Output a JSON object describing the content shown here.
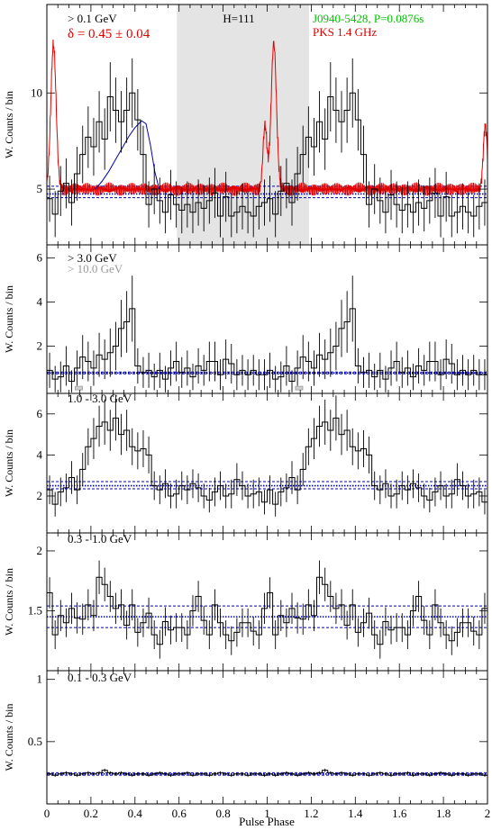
{
  "figure": {
    "x_axis_label": "Pulse Phase",
    "x_tick_labels": [
      "0",
      "0.2",
      "0.4",
      "0.6",
      "0.8",
      "1",
      "1.2",
      "1.4",
      "1.6",
      "1.8",
      "2"
    ],
    "colors": {
      "histogram": "#000000",
      "radio": "#e00000",
      "model": "#0000b0",
      "background": "#0000b0",
      "shade": "#e4e4e4",
      "pulsar_label": "#00c000",
      "radio_label": "#e00000",
      "faint_label": "#9a9a9a"
    }
  },
  "chart_data": [
    {
      "type": "line",
      "panel": "a",
      "ylabel": "W. Counts / bin",
      "energy_label": "> 0.1 GeV",
      "delta_label": "δ = 0.45 ± 0.04",
      "h_label": "H=111",
      "pulsar_label": "J0940-5428, P=0.0876s",
      "radio_label": "PKS 1.4 GHz",
      "xlim": [
        0,
        2
      ],
      "ylim": [
        2.1,
        14.6
      ],
      "yticks": [
        5,
        10
      ],
      "ytick_labels": [
        "5",
        "10"
      ],
      "grid": false,
      "shaded_region": [
        0.59,
        1.19
      ],
      "background_level": [
        4.75,
        5.15,
        4.55
      ],
      "histogram": [
        4.5,
        3.7,
        4.9,
        5.3,
        4.3,
        5.8,
        6.8,
        7.7,
        7.2,
        8.5,
        7.6,
        9.8,
        9.1,
        8.5,
        9.1,
        10.0,
        8.6,
        6.8,
        4.2,
        5.0,
        4.4,
        3.8,
        4.7,
        4.2,
        3.9,
        4.2,
        3.8,
        4.3,
        4.0,
        4.4,
        4.8,
        3.6,
        4.6,
        3.6,
        3.8,
        4.1,
        3.8,
        3.6,
        4.1,
        4.3,
        4.5,
        3.7,
        4.9,
        5.3,
        4.3,
        5.8,
        6.8,
        7.7,
        7.2,
        8.5,
        7.6,
        9.8,
        9.1,
        8.5,
        9.1,
        10.0,
        8.6,
        6.8,
        4.2,
        5.0,
        4.4,
        3.8,
        4.7,
        4.2,
        3.9,
        4.2,
        3.8,
        4.3,
        4.0,
        4.4,
        4.8,
        3.6,
        4.6,
        3.6,
        3.8,
        4.1,
        3.8,
        3.6,
        4.1,
        4.3
      ],
      "errors": [
        1.2,
        1.2,
        1.3,
        1.3,
        1.2,
        1.4,
        1.5,
        1.6,
        1.5,
        1.6,
        1.6,
        1.8,
        1.7,
        1.6,
        1.7,
        1.8,
        1.6,
        1.5,
        1.2,
        1.3,
        1.2,
        1.1,
        1.3,
        1.2,
        1.2,
        1.2,
        1.1,
        1.2,
        1.2,
        1.2,
        1.3,
        1.1,
        1.3,
        1.1,
        1.1,
        1.2,
        1.1,
        1.1,
        1.2,
        1.2,
        1.2,
        1.2,
        1.3,
        1.3,
        1.2,
        1.4,
        1.5,
        1.6,
        1.5,
        1.6,
        1.6,
        1.8,
        1.7,
        1.6,
        1.7,
        1.8,
        1.6,
        1.5,
        1.2,
        1.3,
        1.2,
        1.1,
        1.3,
        1.2,
        1.2,
        1.2,
        1.1,
        1.2,
        1.2,
        1.2,
        1.3,
        1.1,
        1.3,
        1.1,
        1.1,
        1.2,
        1.1,
        1.1,
        1.2,
        1.2
      ],
      "model_curve": {
        "x": [
          0.22,
          0.25,
          0.28,
          0.31,
          0.34,
          0.37,
          0.4,
          0.43,
          0.45,
          0.47,
          0.49,
          0.51
        ],
        "y": [
          5.0,
          5.4,
          5.9,
          6.5,
          7.1,
          7.7,
          8.2,
          8.55,
          8.4,
          7.3,
          5.9,
          5.0
        ]
      },
      "radio_profile": {
        "baseline": 5.0,
        "peaks": [
          {
            "phase": 0.03,
            "height": 12.5,
            "width": 0.012
          },
          {
            "phase": 0.99,
            "height": 8.3,
            "width": 0.009
          },
          {
            "phase": 1.03,
            "height": 12.6,
            "width": 0.012
          },
          {
            "phase": 1.99,
            "height": 8.3,
            "width": 0.009
          }
        ]
      }
    },
    {
      "type": "line",
      "panel": "b",
      "ylabel": "W. Counts / bin",
      "energy_label": "> 3.0 GeV",
      "energy_label_2": "> 10.0 GeV",
      "xlim": [
        0,
        2
      ],
      "ylim": [
        -0.15,
        6.6
      ],
      "yticks": [
        2,
        4,
        6
      ],
      "ytick_labels": [
        "2",
        "4",
        "6"
      ],
      "grid": false,
      "background_level": [
        0.78,
        0.82,
        0.74
      ],
      "histogram": [
        0.9,
        0.5,
        0.6,
        1.1,
        0.4,
        1.0,
        1.5,
        1.3,
        1.0,
        1.6,
        1.4,
        1.7,
        2.0,
        2.8,
        3.1,
        3.7,
        1.1,
        0.8,
        0.9,
        0.6,
        0.9,
        0.5,
        1.0,
        1.3,
        0.8,
        1.0,
        0.6,
        1.1,
        0.9,
        1.3,
        1.3,
        0.7,
        1.4,
        1.2,
        0.7,
        0.9,
        0.7,
        0.9,
        0.7,
        0.7,
        0.9,
        0.5,
        0.6,
        1.1,
        0.4,
        1.0,
        1.5,
        1.3,
        1.0,
        1.6,
        1.4,
        1.7,
        2.0,
        2.8,
        3.1,
        3.7,
        1.1,
        0.8,
        0.9,
        0.6,
        0.9,
        0.5,
        1.0,
        1.3,
        0.8,
        1.0,
        0.6,
        1.1,
        0.9,
        1.3,
        1.3,
        0.7,
        1.4,
        1.2,
        0.7,
        0.9,
        0.7,
        0.9,
        0.7,
        0.7
      ],
      "errors": [
        0.8,
        0.6,
        0.7,
        0.9,
        0.5,
        0.8,
        1.0,
        0.9,
        0.8,
        1.0,
        0.9,
        1.1,
        1.1,
        1.3,
        1.4,
        1.5,
        0.8,
        0.7,
        0.8,
        0.6,
        0.8,
        0.6,
        0.8,
        0.9,
        0.7,
        0.8,
        0.6,
        0.8,
        0.7,
        0.9,
        0.9,
        0.7,
        0.9,
        0.9,
        0.7,
        0.7,
        0.7,
        0.7,
        0.7,
        0.7,
        0.8,
        0.6,
        0.7,
        0.9,
        0.5,
        0.8,
        1.0,
        0.9,
        0.8,
        1.0,
        0.9,
        1.1,
        1.1,
        1.3,
        1.4,
        1.5,
        0.8,
        0.7,
        0.8,
        0.6,
        0.8,
        0.6,
        0.8,
        0.9,
        0.7,
        0.8,
        0.6,
        0.8,
        0.7,
        0.9,
        0.9,
        0.7,
        0.9,
        0.9,
        0.7,
        0.7,
        0.7,
        0.7,
        0.7,
        0.7
      ],
      "faint_markers": [
        0.145,
        1.145
      ]
    },
    {
      "type": "line",
      "panel": "c",
      "ylabel": "W. Counts / bin",
      "energy_label": "1.0 - 3.0 GeV",
      "xlim": [
        0,
        2
      ],
      "ylim": [
        0.2,
        7.0
      ],
      "yticks": [
        2,
        4,
        6
      ],
      "ytick_labels": [
        "2",
        "4",
        "6"
      ],
      "grid": false,
      "background_level": [
        2.5,
        2.7,
        2.35
      ],
      "histogram": [
        2.3,
        1.6,
        2.2,
        2.4,
        2.9,
        2.3,
        3.3,
        4.4,
        4.8,
        5.4,
        5.6,
        5.2,
        5.8,
        5.0,
        5.2,
        4.4,
        4.2,
        4.3,
        4.0,
        2.5,
        2.3,
        2.6,
        2.0,
        2.1,
        2.5,
        2.3,
        2.6,
        2.4,
        2.0,
        1.8,
        2.2,
        2.5,
        2.0,
        2.1,
        2.8,
        2.5,
        2.0,
        2.1,
        2.2,
        1.7,
        2.3,
        1.6,
        2.2,
        2.4,
        2.9,
        2.3,
        3.3,
        4.4,
        4.8,
        5.4,
        5.6,
        5.2,
        5.8,
        5.0,
        5.2,
        4.4,
        4.2,
        4.3,
        4.0,
        2.5,
        2.3,
        2.6,
        2.0,
        2.1,
        2.5,
        2.3,
        2.6,
        2.4,
        2.0,
        1.8,
        2.2,
        2.5,
        2.0,
        2.1,
        2.8,
        2.5,
        2.0,
        2.1,
        2.2,
        1.7
      ],
      "errors": [
        0.7,
        0.6,
        0.7,
        0.7,
        0.8,
        0.7,
        0.8,
        0.9,
        1.0,
        1.0,
        1.1,
        1.0,
        1.1,
        1.0,
        1.0,
        0.9,
        0.9,
        0.9,
        0.9,
        0.7,
        0.7,
        0.7,
        0.6,
        0.7,
        0.7,
        0.7,
        0.7,
        0.7,
        0.6,
        0.6,
        0.7,
        0.7,
        0.6,
        0.7,
        0.8,
        0.7,
        0.6,
        0.7,
        0.7,
        0.6,
        0.7,
        0.6,
        0.7,
        0.7,
        0.8,
        0.7,
        0.8,
        0.9,
        1.0,
        1.0,
        1.1,
        1.0,
        1.1,
        1.0,
        1.0,
        0.9,
        0.9,
        0.9,
        0.9,
        0.7,
        0.7,
        0.7,
        0.6,
        0.7,
        0.7,
        0.7,
        0.7,
        0.7,
        0.6,
        0.6,
        0.7,
        0.7,
        0.6,
        0.7,
        0.8,
        0.7,
        0.6,
        0.7,
        0.7,
        0.6
      ]
    },
    {
      "type": "line",
      "panel": "d",
      "ylabel": "W. Counts / bin",
      "energy_label": "0.3 - 1.0 GeV",
      "xlim": [
        0,
        2
      ],
      "ylim": [
        1.0,
        2.15
      ],
      "yticks": [
        1.5,
        2
      ],
      "ytick_labels": [
        "1.5",
        "2"
      ],
      "grid": false,
      "background_level": [
        1.45,
        1.54,
        1.36
      ],
      "histogram": [
        1.65,
        1.3,
        1.46,
        1.4,
        1.52,
        1.44,
        1.43,
        1.55,
        1.46,
        1.78,
        1.72,
        1.62,
        1.52,
        1.55,
        1.38,
        1.55,
        1.32,
        1.4,
        1.48,
        1.3,
        1.22,
        1.41,
        1.34,
        1.36,
        1.36,
        1.3,
        1.5,
        1.62,
        1.42,
        1.3,
        1.55,
        1.4,
        1.3,
        1.25,
        1.32,
        1.4,
        1.4,
        1.33,
        1.3,
        1.52,
        1.65,
        1.3,
        1.46,
        1.4,
        1.52,
        1.44,
        1.43,
        1.55,
        1.46,
        1.78,
        1.72,
        1.62,
        1.52,
        1.55,
        1.38,
        1.55,
        1.32,
        1.4,
        1.48,
        1.3,
        1.22,
        1.41,
        1.34,
        1.36,
        1.36,
        1.3,
        1.5,
        1.62,
        1.42,
        1.3,
        1.55,
        1.4,
        1.3,
        1.25,
        1.32,
        1.4,
        1.4,
        1.33,
        1.3,
        1.52
      ],
      "errors": [
        0.13,
        0.12,
        0.13,
        0.12,
        0.13,
        0.13,
        0.13,
        0.13,
        0.13,
        0.14,
        0.14,
        0.13,
        0.13,
        0.13,
        0.12,
        0.13,
        0.12,
        0.12,
        0.13,
        0.12,
        0.12,
        0.12,
        0.12,
        0.12,
        0.12,
        0.12,
        0.13,
        0.13,
        0.12,
        0.12,
        0.13,
        0.12,
        0.12,
        0.12,
        0.12,
        0.12,
        0.12,
        0.12,
        0.12,
        0.13,
        0.13,
        0.12,
        0.13,
        0.12,
        0.13,
        0.13,
        0.13,
        0.13,
        0.13,
        0.14,
        0.14,
        0.13,
        0.13,
        0.13,
        0.12,
        0.13,
        0.12,
        0.12,
        0.13,
        0.12,
        0.12,
        0.12,
        0.12,
        0.12,
        0.12,
        0.12,
        0.13,
        0.13,
        0.12,
        0.12,
        0.13,
        0.12,
        0.12,
        0.12,
        0.12,
        0.12,
        0.12,
        0.12,
        0.12,
        0.13
      ]
    },
    {
      "type": "line",
      "panel": "e",
      "ylabel": "W. Counts / bin",
      "energy_label": "0.1 - 0.3 GeV",
      "xlim": [
        0,
        2
      ],
      "ylim": [
        0.0,
        1.07
      ],
      "yticks": [
        0.5,
        1
      ],
      "ytick_labels": [
        "0.5",
        "1"
      ],
      "grid": false,
      "background_level": [
        0.24,
        0.25,
        0.23
      ],
      "histogram": [
        0.24,
        0.23,
        0.24,
        0.25,
        0.24,
        0.23,
        0.24,
        0.25,
        0.24,
        0.25,
        0.27,
        0.25,
        0.24,
        0.25,
        0.24,
        0.23,
        0.24,
        0.24,
        0.23,
        0.24,
        0.25,
        0.24,
        0.23,
        0.24,
        0.24,
        0.25,
        0.23,
        0.24,
        0.24,
        0.23,
        0.24,
        0.25,
        0.24,
        0.23,
        0.24,
        0.24,
        0.23,
        0.24,
        0.24,
        0.23,
        0.24,
        0.23,
        0.24,
        0.25,
        0.24,
        0.23,
        0.24,
        0.25,
        0.24,
        0.25,
        0.27,
        0.25,
        0.24,
        0.25,
        0.24,
        0.23,
        0.24,
        0.24,
        0.23,
        0.24,
        0.25,
        0.24,
        0.23,
        0.24,
        0.24,
        0.25,
        0.23,
        0.24,
        0.24,
        0.23,
        0.24,
        0.25,
        0.24,
        0.23,
        0.24,
        0.24,
        0.23,
        0.24,
        0.24,
        0.23
      ],
      "errors": [
        0.012,
        0.012,
        0.012,
        0.012,
        0.012,
        0.012,
        0.012,
        0.012,
        0.012,
        0.012,
        0.013,
        0.012,
        0.012,
        0.012,
        0.012,
        0.012,
        0.012,
        0.012,
        0.012,
        0.012,
        0.012,
        0.012,
        0.012,
        0.012,
        0.012,
        0.012,
        0.012,
        0.012,
        0.012,
        0.012,
        0.012,
        0.012,
        0.012,
        0.012,
        0.012,
        0.012,
        0.012,
        0.012,
        0.012,
        0.012,
        0.012,
        0.012,
        0.012,
        0.012,
        0.012,
        0.012,
        0.012,
        0.012,
        0.012,
        0.012,
        0.013,
        0.012,
        0.012,
        0.012,
        0.012,
        0.012,
        0.012,
        0.012,
        0.012,
        0.012,
        0.012,
        0.012,
        0.012,
        0.012,
        0.012,
        0.012,
        0.012,
        0.012,
        0.012,
        0.012,
        0.012,
        0.012,
        0.012,
        0.012,
        0.012,
        0.012,
        0.012,
        0.012,
        0.012,
        0.012
      ]
    }
  ]
}
